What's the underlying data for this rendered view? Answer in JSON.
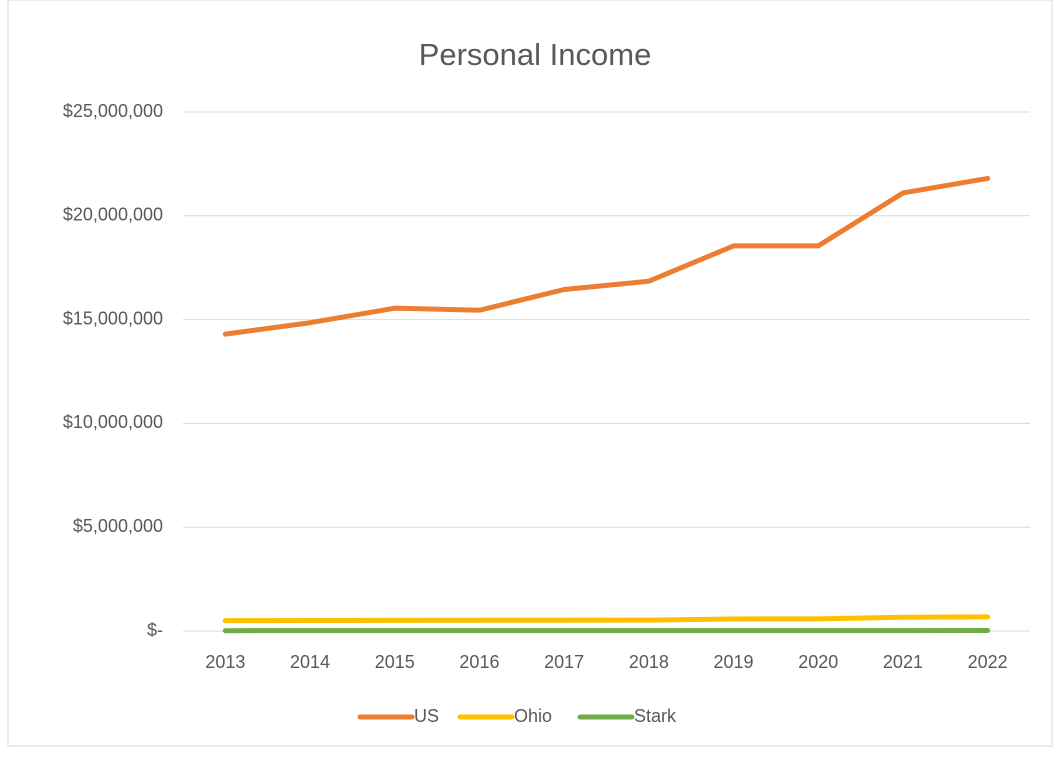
{
  "chart_data": {
    "type": "line",
    "title": "Personal Income",
    "categories": [
      "2013",
      "2014",
      "2015",
      "2016",
      "2017",
      "2018",
      "2019",
      "2020",
      "2021",
      "2022"
    ],
    "series": [
      {
        "name": "US",
        "color": "#ed7d31",
        "values": [
          14300000,
          14850000,
          15550000,
          15450000,
          16450000,
          16850000,
          18550000,
          18550000,
          21100000,
          21800000
        ]
      },
      {
        "name": "Ohio",
        "color": "#ffc000",
        "values": [
          500000,
          505000,
          510000,
          515000,
          520000,
          525000,
          580000,
          585000,
          660000,
          680000
        ]
      },
      {
        "name": "Stark",
        "color": "#70ad47",
        "values": [
          15000,
          16000,
          16000,
          17000,
          17000,
          18000,
          19000,
          19000,
          21000,
          22000
        ]
      }
    ],
    "ylim": [
      0,
      25000000
    ],
    "yticks": [
      {
        "value": 0,
        "label": "$-"
      },
      {
        "value": 5000000,
        "label": "$5,000,000"
      },
      {
        "value": 10000000,
        "label": "$10,000,000"
      },
      {
        "value": 15000000,
        "label": "$15,000,000"
      },
      {
        "value": 20000000,
        "label": "$20,000,000"
      },
      {
        "value": 25000000,
        "label": "$25,000,000"
      }
    ],
    "grid": true,
    "legend": "bottom"
  }
}
